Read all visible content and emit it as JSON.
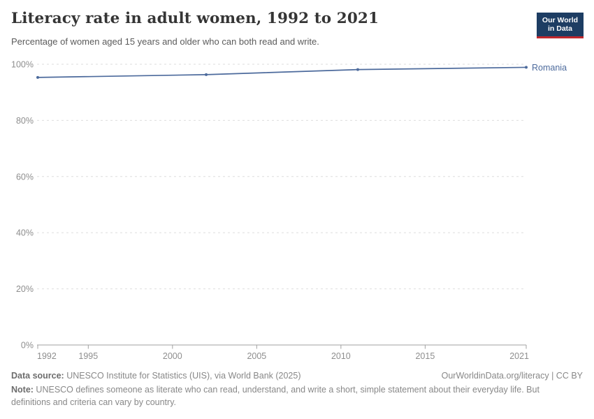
{
  "header": {
    "title": "Literacy rate in adult women, 1992 to 2021",
    "subtitle": "Percentage of women aged 15 years and older who can both read and write.",
    "logo": {
      "line1": "Our World",
      "line2": "in Data",
      "bg_color": "#1d3d63",
      "bar_color": "#c0282d"
    }
  },
  "chart_data": {
    "type": "line",
    "title": "Literacy rate in adult women, 1992 to 2021",
    "subtitle": "Percentage of women aged 15 years and older who can both read and write.",
    "xlabel": "",
    "ylabel": "",
    "xlim": [
      1992,
      2021
    ],
    "ylim": [
      0,
      100
    ],
    "x_ticks": [
      1992,
      1995,
      2000,
      2005,
      2010,
      2015,
      2021
    ],
    "y_ticks": [
      0,
      20,
      40,
      60,
      80,
      100
    ],
    "y_tick_suffix": "%",
    "grid": "horizontal-dashed",
    "legend_position": "end-of-line-label",
    "series": [
      {
        "name": "Romania",
        "color": "#4c6a9c",
        "points": [
          {
            "x": 1992,
            "y": 95.3
          },
          {
            "x": 2002,
            "y": 96.3
          },
          {
            "x": 2011,
            "y": 98.1
          },
          {
            "x": 2021,
            "y": 98.9
          }
        ]
      }
    ]
  },
  "chart_style": {
    "gridline_color": "#dedede",
    "axis_color": "#a1a1a1",
    "tick_label_color": "#8e8e8e"
  },
  "footer": {
    "datasource_label": "Data source:",
    "datasource_text": " UNESCO Institute for Statistics (UIS), via World Bank (2025)",
    "link_text": "OurWorldinData.org/literacy | CC BY",
    "note_label": "Note:",
    "note_text": " UNESCO defines someone as literate who can read, understand, and write a short, simple statement about their everyday life. But definitions and criteria can vary by country."
  }
}
